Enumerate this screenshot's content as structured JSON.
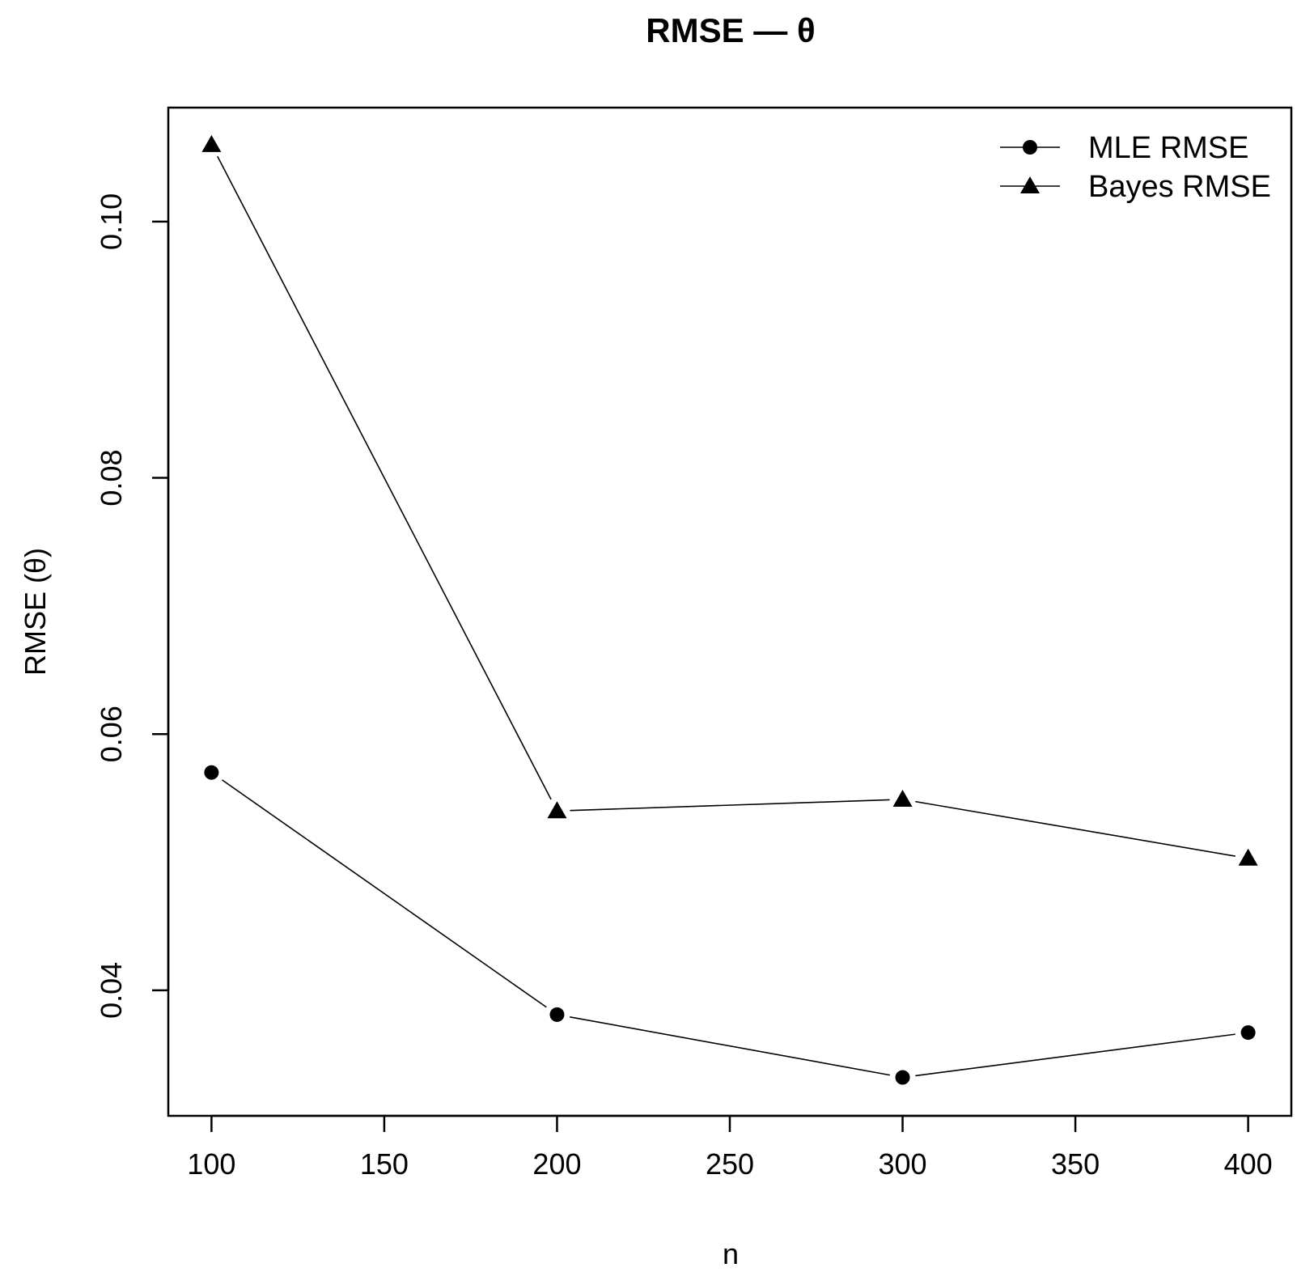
{
  "chart_data": {
    "type": "line",
    "title": "RMSE — θ",
    "xlabel": "n",
    "ylabel": "RMSE (θ)",
    "x": [
      100,
      200,
      300,
      400
    ],
    "xticks": [
      100,
      150,
      200,
      250,
      300,
      350,
      400
    ],
    "xtick_labels": [
      "100",
      "150",
      "200",
      "250",
      "300",
      "350",
      "400"
    ],
    "yticks": [
      0.04,
      0.06,
      0.08,
      0.1
    ],
    "ytick_labels": [
      "0.04",
      "0.06",
      "0.08",
      "0.10"
    ],
    "xlim": [
      87.5,
      412.5
    ],
    "ylim": [
      0.0302,
      0.1089
    ],
    "grid": false,
    "legend_position": "top-right",
    "series": [
      {
        "name": "MLE RMSE",
        "marker": "circle",
        "color": "#000000",
        "values": [
          0.057,
          0.0381,
          0.0332,
          0.0367
        ]
      },
      {
        "name": "Bayes RMSE",
        "marker": "triangle",
        "color": "#000000",
        "values": [
          0.106,
          0.054,
          0.0549,
          0.0503
        ]
      }
    ]
  }
}
